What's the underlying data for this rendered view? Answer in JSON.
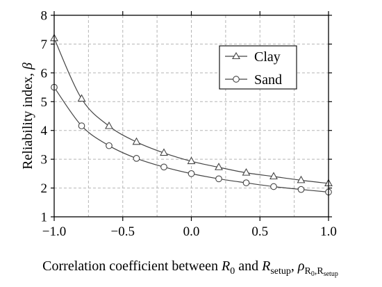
{
  "chart_data": {
    "type": "line",
    "xlabel_parts": {
      "prefix": "Correlation coefficient between ",
      "r0_main": "R",
      "r0_sub": "0",
      "and": " and ",
      "rsetup_main": "R",
      "rsetup_sub": "setup",
      "comma": ", ",
      "rho_main": "ρ",
      "rho_sub_main": "R",
      "rho_sub_sub": "0",
      "rho_sub_comma": ",",
      "rho_sub_main2": "R",
      "rho_sub_sub2": "setup"
    },
    "ylabel_parts": {
      "text": "Reliability index, ",
      "symbol": "β"
    },
    "xlim": [
      -1.0,
      1.0
    ],
    "ylim": [
      1,
      8
    ],
    "xticks": [
      -1.0,
      -0.5,
      0.0,
      0.5,
      1.0
    ],
    "xtick_labels": [
      "−1.0",
      "−0.5",
      "0.0",
      "0.5",
      "1.0"
    ],
    "xgrid": [
      -0.75,
      -0.5,
      -0.25,
      0.0,
      0.25,
      0.5,
      0.75
    ],
    "yticks": [
      1,
      2,
      3,
      4,
      5,
      6,
      7,
      8
    ],
    "ytick_labels": [
      "1",
      "2",
      "3",
      "4",
      "5",
      "6",
      "7",
      "8"
    ],
    "grid": true,
    "legend_position": "top-right",
    "x": [
      -1.0,
      -0.8,
      -0.6,
      -0.4,
      -0.2,
      0.0,
      0.2,
      0.4,
      0.6,
      0.8,
      1.0
    ],
    "series": [
      {
        "name": "Clay",
        "marker": "triangle",
        "values": [
          7.2,
          5.1,
          4.15,
          3.6,
          3.22,
          2.93,
          2.72,
          2.53,
          2.4,
          2.27,
          2.16
        ]
      },
      {
        "name": "Sand",
        "marker": "circle",
        "values": [
          5.5,
          4.16,
          3.47,
          3.03,
          2.73,
          2.5,
          2.32,
          2.18,
          2.05,
          1.95,
          1.86
        ]
      }
    ]
  }
}
